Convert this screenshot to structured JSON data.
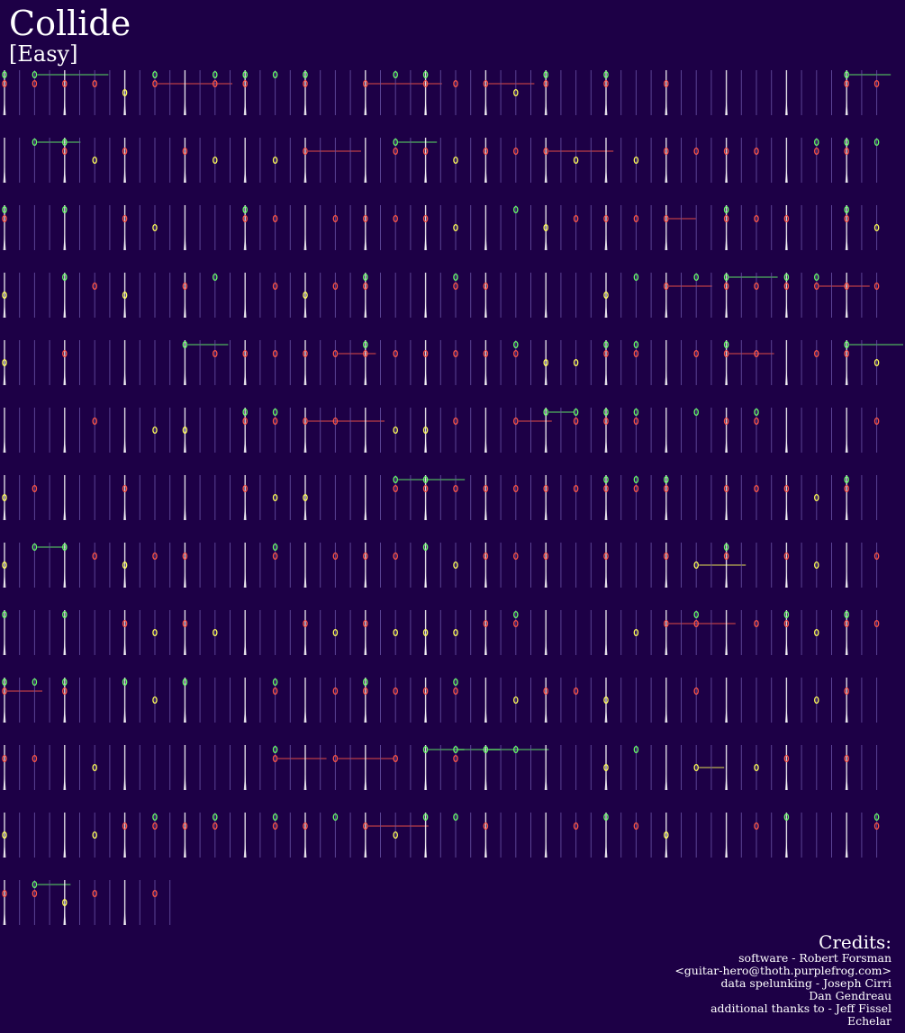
{
  "song": {
    "title": "Collide",
    "difficulty": "[Easy]"
  },
  "credits": {
    "heading": "Credits:",
    "lines": [
      "software - Robert Forsman",
      "<guitar-hero@thoth.purplefrog.com>",
      "data spelunking - Joseph Cirri",
      "Dan Gendreau",
      "additional thanks to - Jeff Fissel",
      "Echelar"
    ]
  },
  "colors": {
    "background": "#1d0046",
    "green": "#66ff66",
    "red": "#ff5544",
    "yellow": "#ffff55",
    "beat_line": "#6a54a8",
    "measure_line": "#ffffff"
  },
  "chart_data": {
    "type": "note-chart",
    "lanes": [
      "green",
      "red",
      "yellow"
    ],
    "measures_total": 157,
    "visible_rows": 13
  }
}
